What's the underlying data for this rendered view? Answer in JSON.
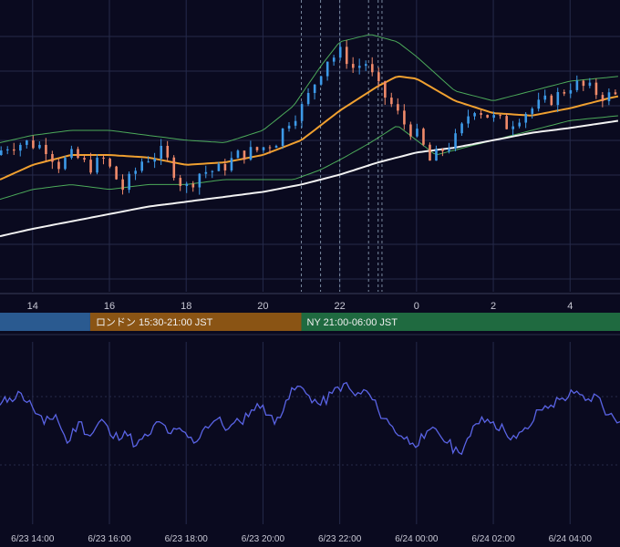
{
  "theme": {
    "background": "#0a0a1f",
    "grid": "#252a4a",
    "up_candle": "#3d9ae8",
    "down_candle": "#f08a6a",
    "ma_short": "#f0a030",
    "ma_long": "#f2f2f2",
    "bollinger": "#4caa5a",
    "oscillator": "#5a64e6",
    "session_vlines": "#7a8aa0"
  },
  "top_axis": {
    "ticks": [
      "14",
      "16",
      "18",
      "20",
      "22",
      "0",
      "2",
      "4"
    ]
  },
  "sessions": [
    {
      "name": "asia",
      "label": "",
      "color": "#2a5a90"
    },
    {
      "name": "london",
      "label": "ロンドン 15:30-21:00 JST",
      "color": "#8a5414"
    },
    {
      "name": "ny",
      "label": "NY 21:00-06:00 JST",
      "color": "#1f6a40"
    }
  ],
  "bottom_axis": {
    "ticks": [
      "6/23 14:00",
      "6/23 16:00",
      "6/23 18:00",
      "6/23 20:00",
      "6/23 22:00",
      "6/24 00:00",
      "6/24 02:00",
      "6/24 04:00"
    ]
  },
  "chart_data": [
    {
      "type": "candlestick",
      "x_unit": "hour (JST)",
      "x_range": [
        13.15,
        5.3
      ],
      "y_range": [
        0,
        100
      ],
      "grid": true,
      "x_ticks": [
        "14",
        "16",
        "18",
        "20",
        "22",
        "0",
        "2",
        "4"
      ],
      "series_overlays": [
        "moving_average_short",
        "moving_average_long",
        "bollinger_upper",
        "bollinger_lower"
      ],
      "price_anchors": [
        [
          13.15,
          50
        ],
        [
          13.5,
          54
        ],
        [
          14.0,
          55
        ],
        [
          14.5,
          53
        ],
        [
          14.8,
          46
        ],
        [
          15.2,
          50
        ],
        [
          15.6,
          45
        ],
        [
          16.0,
          48
        ],
        [
          16.5,
          36
        ],
        [
          17.0,
          48
        ],
        [
          17.5,
          51
        ],
        [
          17.8,
          44
        ],
        [
          18.1,
          36
        ],
        [
          18.5,
          43
        ],
        [
          19.0,
          44
        ],
        [
          19.5,
          50
        ],
        [
          20.0,
          52
        ],
        [
          20.5,
          56
        ],
        [
          20.8,
          64
        ],
        [
          21.2,
          70
        ],
        [
          21.5,
          80
        ],
        [
          21.8,
          89
        ],
        [
          22.0,
          90
        ],
        [
          22.2,
          92
        ],
        [
          22.5,
          85
        ],
        [
          22.8,
          88
        ],
        [
          23.1,
          78
        ],
        [
          23.5,
          70
        ],
        [
          23.8,
          63
        ],
        [
          24.2,
          57
        ],
        [
          24.5,
          47
        ],
        [
          24.8,
          52
        ],
        [
          25.2,
          57
        ],
        [
          25.6,
          70
        ],
        [
          26.0,
          66
        ],
        [
          26.5,
          62
        ],
        [
          26.9,
          67
        ],
        [
          27.3,
          70
        ],
        [
          27.8,
          74
        ],
        [
          28.2,
          79
        ],
        [
          28.6,
          77
        ],
        [
          29.0,
          74
        ],
        [
          29.3,
          74
        ]
      ],
      "ma_short_anchors": [
        [
          13.15,
          40
        ],
        [
          14.0,
          46
        ],
        [
          15.0,
          50
        ],
        [
          16.0,
          50
        ],
        [
          17.0,
          49
        ],
        [
          18.0,
          46
        ],
        [
          19.0,
          47
        ],
        [
          20.0,
          50
        ],
        [
          21.0,
          56
        ],
        [
          22.0,
          68
        ],
        [
          23.0,
          78
        ],
        [
          23.5,
          82
        ],
        [
          24.0,
          81
        ],
        [
          25.0,
          72
        ],
        [
          26.0,
          67
        ],
        [
          27.0,
          66
        ],
        [
          28.0,
          69
        ],
        [
          29.0,
          73
        ],
        [
          29.3,
          74
        ]
      ],
      "ma_long_anchors": [
        [
          13.15,
          17
        ],
        [
          14.0,
          20
        ],
        [
          15.0,
          23
        ],
        [
          16.0,
          26
        ],
        [
          17.0,
          29
        ],
        [
          18.0,
          31
        ],
        [
          19.0,
          33
        ],
        [
          20.0,
          35
        ],
        [
          21.0,
          38
        ],
        [
          22.0,
          42
        ],
        [
          23.0,
          47
        ],
        [
          24.0,
          51
        ],
        [
          25.0,
          53
        ],
        [
          26.0,
          56
        ],
        [
          27.0,
          59
        ],
        [
          28.0,
          61
        ],
        [
          29.3,
          64
        ]
      ],
      "bollinger_upper_anchors": [
        [
          13.15,
          55
        ],
        [
          14.0,
          58
        ],
        [
          15.0,
          60
        ],
        [
          16.0,
          60
        ],
        [
          17.0,
          58
        ],
        [
          18.0,
          56
        ],
        [
          19.0,
          55
        ],
        [
          20.0,
          60
        ],
        [
          20.8,
          70
        ],
        [
          21.5,
          86
        ],
        [
          22.0,
          96
        ],
        [
          22.8,
          99
        ],
        [
          23.5,
          96
        ],
        [
          24.0,
          90
        ],
        [
          24.5,
          83
        ],
        [
          25.0,
          76
        ],
        [
          26.0,
          72
        ],
        [
          27.0,
          76
        ],
        [
          28.0,
          80
        ],
        [
          29.3,
          82
        ]
      ],
      "bollinger_lower_anchors": [
        [
          13.15,
          32
        ],
        [
          14.0,
          36
        ],
        [
          15.0,
          38
        ],
        [
          16.0,
          36
        ],
        [
          17.0,
          38
        ],
        [
          18.0,
          38
        ],
        [
          19.0,
          40
        ],
        [
          20.0,
          40
        ],
        [
          20.8,
          40
        ],
        [
          21.5,
          44
        ],
        [
          22.0,
          48
        ],
        [
          22.8,
          55
        ],
        [
          23.5,
          62
        ],
        [
          24.0,
          56
        ],
        [
          24.5,
          50
        ],
        [
          25.0,
          52
        ],
        [
          26.0,
          56
        ],
        [
          27.0,
          60
        ],
        [
          28.0,
          64
        ],
        [
          29.3,
          66
        ]
      ],
      "session_markers_hours": [
        21.0,
        21.5,
        22.0,
        22.75,
        23.0,
        23.1
      ]
    },
    {
      "type": "line",
      "name": "oscillator",
      "x_unit": "time (JST)",
      "x_range": [
        "6/23 13:10",
        "6/24 05:20"
      ],
      "y_range": [
        0,
        100
      ],
      "grid": true,
      "x_ticks": [
        "6/23 14:00",
        "6/23 16:00",
        "6/23 18:00",
        "6/23 20:00",
        "6/23 22:00",
        "6/24 00:00",
        "6/24 02:00",
        "6/24 04:00"
      ],
      "x": [
        13.15,
        13.4,
        13.7,
        14.0,
        14.3,
        14.6,
        14.9,
        15.2,
        15.5,
        15.8,
        16.1,
        16.4,
        16.7,
        17.0,
        17.3,
        17.6,
        17.9,
        18.2,
        18.5,
        18.8,
        19.1,
        19.4,
        19.7,
        20.0,
        20.3,
        20.6,
        20.9,
        21.2,
        21.5,
        21.8,
        22.1,
        22.4,
        22.7,
        23.0,
        23.3,
        23.6,
        23.9,
        24.2,
        24.5,
        24.8,
        25.1,
        25.4,
        25.7,
        26.0,
        26.3,
        26.6,
        26.9,
        27.2,
        27.5,
        27.8,
        28.1,
        28.4,
        28.7,
        29.0,
        29.3
      ],
      "values": [
        62,
        68,
        72,
        60,
        46,
        54,
        30,
        48,
        36,
        50,
        34,
        40,
        28,
        36,
        48,
        38,
        40,
        30,
        44,
        50,
        42,
        48,
        58,
        62,
        46,
        66,
        78,
        70,
        62,
        72,
        80,
        70,
        74,
        58,
        46,
        36,
        30,
        34,
        42,
        30,
        22,
        36,
        52,
        48,
        40,
        34,
        42,
        58,
        62,
        68,
        72,
        66,
        70,
        54,
        48
      ]
    }
  ]
}
